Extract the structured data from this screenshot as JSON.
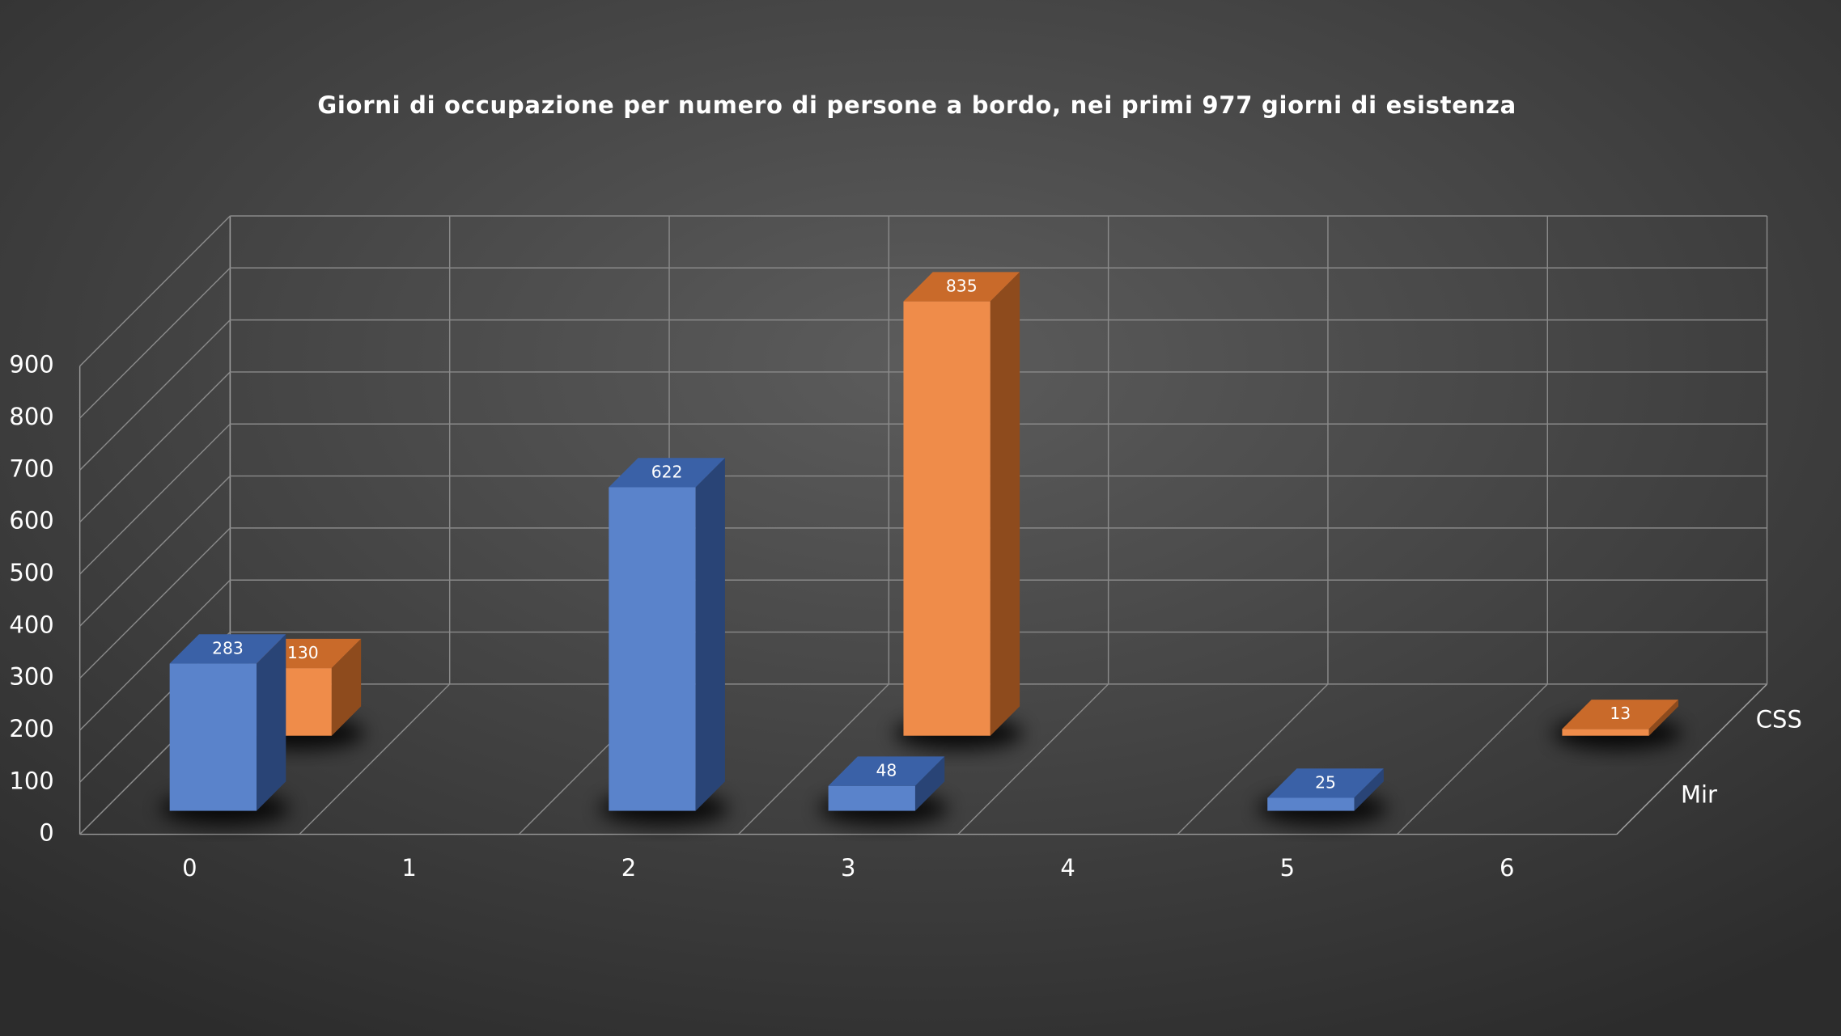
{
  "chart_data": {
    "type": "bar3d",
    "title": "Giorni di occupazione per numero di persone a bordo, nei primi 977 giorni di esistenza",
    "categories": [
      "0",
      "1",
      "2",
      "3",
      "4",
      "5",
      "6"
    ],
    "series": [
      {
        "name": "Mir",
        "color": "#4472c4",
        "values": [
          283,
          null,
          622,
          48,
          null,
          25,
          null
        ]
      },
      {
        "name": "CSS",
        "color": "#ed7d31",
        "values": [
          130,
          null,
          null,
          835,
          null,
          null,
          13
        ]
      }
    ],
    "ylim": [
      0,
      900
    ],
    "yticks": [
      0,
      100,
      200,
      300,
      400,
      500,
      600,
      700,
      800,
      900
    ],
    "grid": true
  }
}
